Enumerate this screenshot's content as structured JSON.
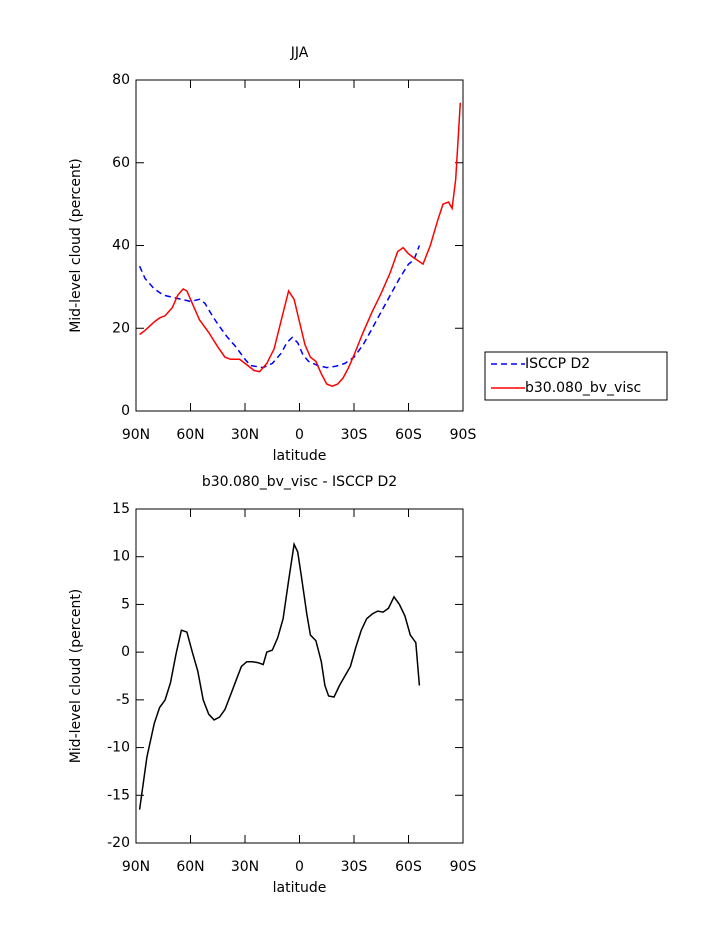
{
  "chart_data": [
    {
      "type": "line",
      "title": "JJA",
      "xlabel": "latitude",
      "ylabel": "Mid-level cloud (percent)",
      "xlim": [
        90,
        -90
      ],
      "xticks": [
        {
          "value": 90,
          "label": "90N"
        },
        {
          "value": 60,
          "label": "60N"
        },
        {
          "value": 30,
          "label": "30N"
        },
        0,
        {
          "value": -30,
          "label": "30S"
        },
        {
          "value": -60,
          "label": "60S"
        },
        {
          "value": -90,
          "label": "90S"
        }
      ],
      "ylim": [
        0,
        80
      ],
      "yticks": [
        0,
        20,
        40,
        60,
        80
      ],
      "legend": "right",
      "series": [
        {
          "name": "ISCCP D2",
          "color": "#0000ff",
          "dash": true,
          "x": [
            88,
            85,
            80,
            75,
            70,
            65,
            60,
            55,
            52,
            48,
            45,
            40,
            35,
            30,
            27,
            20,
            15,
            10,
            7,
            4,
            1,
            -2,
            -5,
            -10,
            -15,
            -20,
            -25,
            -30,
            -35,
            -40,
            -45,
            -50,
            -55,
            -60,
            -63,
            -66
          ],
          "values": [
            35,
            32,
            29.5,
            28,
            27.5,
            27,
            26.5,
            27,
            26,
            23,
            21,
            18,
            15.5,
            12.5,
            11,
            10.5,
            11.5,
            14,
            16.5,
            17.8,
            16.5,
            13.5,
            12,
            11,
            10.5,
            10.8,
            11.5,
            13,
            16,
            20,
            24,
            28,
            32,
            35.5,
            36.5,
            40
          ]
        },
        {
          "name": "b30.080_bv_visc",
          "color": "#ff0000",
          "dash": false,
          "x": [
            88,
            85,
            80,
            77,
            74,
            70,
            67,
            64,
            62,
            58,
            55,
            50,
            45,
            41,
            38,
            33,
            30,
            25,
            22,
            18,
            14,
            10,
            6,
            3,
            0,
            -3,
            -6,
            -9,
            -12,
            -15,
            -18,
            -21,
            -24,
            -27,
            -30,
            -35,
            -40,
            -45,
            -50,
            -54,
            -57,
            -60,
            -63,
            -68,
            -72,
            -76,
            -79,
            -82,
            -84,
            -86,
            -88.5
          ],
          "values": [
            18.5,
            19.5,
            21.5,
            22.5,
            23,
            25,
            28,
            29.5,
            29,
            25,
            22,
            19,
            15.5,
            13,
            12.5,
            12.5,
            11.5,
            9.8,
            9.5,
            11.5,
            15,
            22,
            29,
            27,
            21.5,
            16,
            13,
            12,
            9,
            6.5,
            6,
            6.5,
            8,
            10.5,
            13.5,
            19,
            24,
            28.5,
            33.5,
            38.5,
            39.5,
            38,
            37,
            35.5,
            40,
            46,
            50,
            50.5,
            49,
            56,
            74.5
          ]
        }
      ]
    },
    {
      "type": "line",
      "title": "b30.080_bv_visc - ISCCP D2",
      "xlabel": "latitude",
      "ylabel": "Mid-level cloud (percent)",
      "xlim": [
        90,
        -90
      ],
      "xticks": [
        {
          "value": 90,
          "label": "90N"
        },
        {
          "value": 60,
          "label": "60N"
        },
        {
          "value": 30,
          "label": "30N"
        },
        0,
        {
          "value": -30,
          "label": "30S"
        },
        {
          "value": -60,
          "label": "60S"
        },
        {
          "value": -90,
          "label": "90S"
        }
      ],
      "ylim": [
        -20,
        15
      ],
      "yticks": [
        -20,
        -15,
        -10,
        -5,
        0,
        5,
        10,
        15
      ],
      "series": [
        {
          "color": "#000000",
          "dash": false,
          "x": [
            88,
            84,
            80,
            77,
            74,
            71,
            68,
            65,
            62,
            59,
            56,
            53,
            50,
            47,
            44,
            41,
            38,
            35,
            32,
            29,
            26,
            23,
            20,
            18,
            15,
            12,
            9,
            6,
            3,
            1,
            -1,
            -4,
            -6,
            -9,
            -12,
            -14,
            -16,
            -19,
            -22,
            -25,
            -28,
            -31,
            -34,
            -37,
            -40,
            -43,
            -46,
            -49,
            -52,
            -55,
            -58,
            -61,
            -64,
            -66
          ],
          "values": [
            -16.5,
            -11,
            -7.5,
            -5.8,
            -5,
            -3.2,
            -0.2,
            2.3,
            2.1,
            0,
            -2,
            -5,
            -6.5,
            -7.1,
            -6.8,
            -6,
            -4.5,
            -3,
            -1.5,
            -1,
            -1,
            -1.1,
            -1.3,
            0,
            0.2,
            1.5,
            3.5,
            7.5,
            11.3,
            10.5,
            8,
            4,
            1.8,
            1.2,
            -1,
            -3.5,
            -4.6,
            -4.7,
            -3.5,
            -2.5,
            -1.5,
            0.5,
            2.3,
            3.5,
            4,
            4.3,
            4.2,
            4.6,
            5.8,
            5,
            3.8,
            1.8,
            1,
            -3.5
          ]
        }
      ]
    }
  ]
}
